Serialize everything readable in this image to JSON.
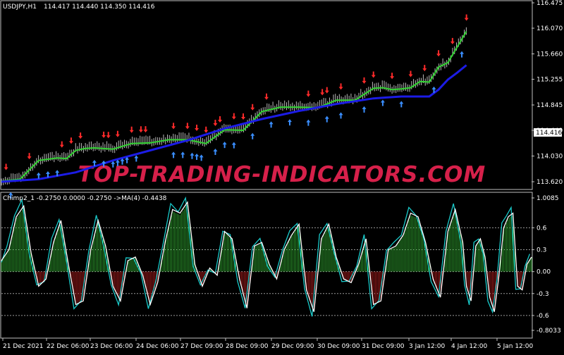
{
  "chart_data": [
    {
      "type": "candlestick",
      "symbol_label": "USDJPY,H1",
      "ohlc_label": "114.417 114.440 114.350 114.416",
      "ylim": [
        113.62,
        116.475
      ],
      "y_ticks": [
        "116.475",
        "116.070",
        "115.660",
        "115.255",
        "114.845",
        "114.440",
        "114.030",
        "113.620"
      ],
      "last_price": "114.416",
      "watermark": "TOP-TRADING-INDICATORS.COM",
      "series": [
        {
          "color": "#32d432",
          "x": [
            0,
            4,
            8,
            12,
            14,
            16,
            18,
            20,
            24,
            28,
            32,
            36,
            40,
            44,
            48,
            52,
            56,
            60,
            64,
            68,
            72,
            76,
            80,
            82,
            84,
            86,
            88,
            90,
            92,
            94,
            96,
            100
          ],
          "values": [
            113.63,
            113.66,
            113.96,
            114.0,
            113.99,
            114.12,
            114.15,
            114.16,
            114.14,
            114.23,
            114.24,
            114.29,
            114.29,
            114.23,
            114.45,
            114.44,
            114.74,
            114.81,
            114.81,
            114.8,
            114.92,
            114.92,
            115.11,
            115.12,
            115.09,
            115.1,
            115.12,
            115.22,
            115.21,
            115.45,
            115.52,
            116.02
          ]
        },
        {
          "color": "#1c1ce6",
          "x": [
            0,
            8,
            16,
            24,
            32,
            40,
            48,
            56,
            64,
            72,
            80,
            82,
            84,
            86,
            88,
            90,
            92,
            94,
            96,
            98,
            100
          ],
          "values": [
            113.62,
            113.66,
            113.77,
            113.96,
            114.12,
            114.28,
            114.47,
            114.62,
            114.75,
            114.86,
            114.95,
            114.96,
            114.97,
            114.98,
            114.98,
            114.98,
            114.98,
            115.09,
            115.25,
            115.36,
            115.48
          ]
        }
      ],
      "up_arrows_x": [
        2,
        8,
        10,
        12,
        20,
        22,
        24,
        25,
        26,
        27,
        29,
        37,
        39,
        41,
        42,
        43,
        46,
        48,
        50,
        54,
        58,
        62,
        66,
        70,
        73,
        78,
        82,
        86,
        93,
        99,
        102,
        106
      ],
      "down_arrows_x": [
        1,
        6,
        13,
        15,
        17,
        22,
        23,
        25,
        28,
        30,
        31,
        37,
        40,
        42,
        44,
        46,
        47,
        50,
        52,
        54,
        57,
        66,
        69,
        70,
        73,
        78,
        80,
        84,
        88,
        91,
        94,
        97,
        100,
        103,
        107
      ]
    },
    {
      "type": "bar+line",
      "label": "Chimp2_1 -0.2750 0.0000 -0.2750 ->MA(4) -0.4438",
      "ylim": [
        -0.8033,
        1.0085
      ],
      "y_ticks": [
        "1.0085",
        "0.6",
        "0.3",
        "0.00",
        "-0.3",
        "-0.6",
        "-0.8033"
      ],
      "series": [
        {
          "color": "#ffffff",
          "x": [
            0,
            1.6,
            3.2,
            4.8,
            6.4,
            8,
            9.6,
            11.2,
            12.8,
            14.4,
            16,
            17.6,
            19.2,
            20.8,
            22.4,
            24,
            25.6,
            27.2,
            28.8,
            30.4,
            32,
            33.6,
            35.2,
            36.8,
            38.4,
            40,
            41.6,
            43.2,
            44.8,
            46.4,
            48,
            49.6,
            51.2,
            52.8,
            54.4,
            56,
            57.6,
            59.2,
            60.8,
            62.4,
            64,
            65.6,
            67.2,
            68.8,
            70.4,
            72,
            73.6,
            75.2,
            76.8,
            78.4,
            80,
            81.6,
            83.2,
            84.8,
            86.4,
            88,
            89.6,
            91.2,
            92.8,
            94.4,
            96,
            97.6,
            99.2,
            100,
            101,
            102,
            103,
            104,
            105,
            106,
            107,
            108,
            109,
            110,
            111,
            112,
            113,
            114
          ],
          "values": [
            0.15,
            0.3,
            0.75,
            0.9,
            0.25,
            -0.2,
            -0.1,
            0.4,
            0.7,
            0.1,
            -0.45,
            -0.4,
            0.3,
            0.7,
            0.35,
            -0.2,
            -0.4,
            0.15,
            0.2,
            -0.05,
            -0.45,
            -0.15,
            0.4,
            0.85,
            0.8,
            0.95,
            0.1,
            -0.2,
            0.05,
            -0.05,
            0.55,
            0.45,
            -0.1,
            -0.5,
            0.35,
            0.4,
            0.1,
            -0.1,
            0.3,
            0.5,
            0.65,
            -0.25,
            -0.55,
            0.45,
            0.65,
            0.2,
            -0.1,
            -0.15,
            0.1,
            0.45,
            -0.45,
            -0.4,
            0.3,
            0.35,
            0.5,
            0.8,
            0.75,
            0.4,
            -0.1,
            -0.35,
            0.55,
            0.85,
            0.4,
            -0.2,
            -0.4,
            0.35,
            0.45,
            0.2,
            -0.35,
            -0.55,
            -0.05,
            0.6,
            0.75,
            0.8,
            -0.2,
            -0.25,
            0.1,
            0.2
          ]
        }
      ],
      "hist_colors": {
        "positive": "#2d9a2d",
        "negative": "#a31c1c"
      },
      "signal_color": "#19c9c9"
    }
  ],
  "x_axis": {
    "labels": [
      "21 Dec 2021",
      "22 Dec 06:00",
      "23 Dec 06:00",
      "24 Dec 06:00",
      "27 Dec 09:00",
      "28 Dec 09:00",
      "29 Dec 09:00",
      "30 Dec 09:00",
      "31 Dec 09:00",
      "3 Jan 12:00",
      "4 Jan 12:00",
      "5 Jan 12:00"
    ]
  }
}
